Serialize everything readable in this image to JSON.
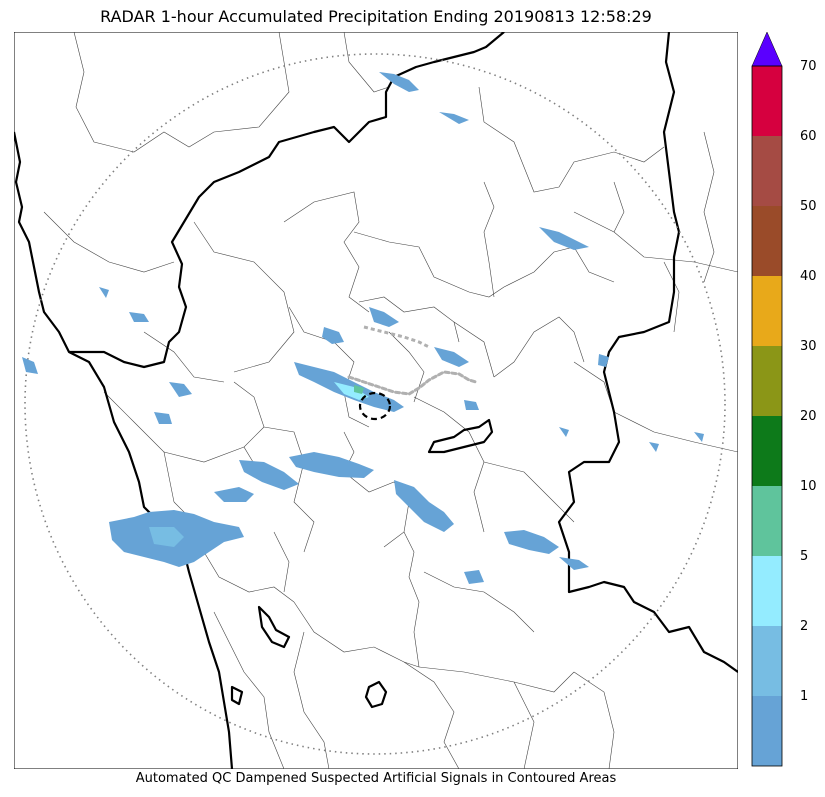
{
  "header": {
    "title": "RADAR 1-hour Accumulated Precipitation Ending 20190813 12:58:29"
  },
  "footer": {
    "caption": "Automated QC Dampened Suspected Artificial Signals in Contoured Areas"
  },
  "colorbar": {
    "levels": [
      {
        "label": "",
        "color": "#66a3d6"
      },
      {
        "label": "1",
        "color": "#77bde3"
      },
      {
        "label": "2",
        "color": "#94ecff"
      },
      {
        "label": "5",
        "color": "#5fc49c"
      },
      {
        "label": "10",
        "color": "#0d7a1a"
      },
      {
        "label": "20",
        "color": "#8b9617"
      },
      {
        "label": "30",
        "color": "#e8a91a"
      },
      {
        "label": "40",
        "color": "#9a4b29"
      },
      {
        "label": "50",
        "color": "#a54b44"
      },
      {
        "label": "60",
        "color": "#d6003f"
      },
      {
        "label": "70",
        "color": "#5a00ff"
      }
    ],
    "extend_color": "#5a00ff"
  },
  "colors": {
    "border": "#000000",
    "district": "#444444",
    "range_ring": "#808080",
    "precip_light": "#66a3d6",
    "precip_mid": "#77bde3",
    "precip_cyan": "#94ecff",
    "precip_green": "#5fc49c",
    "qc_contour": "#b0b0b0"
  }
}
